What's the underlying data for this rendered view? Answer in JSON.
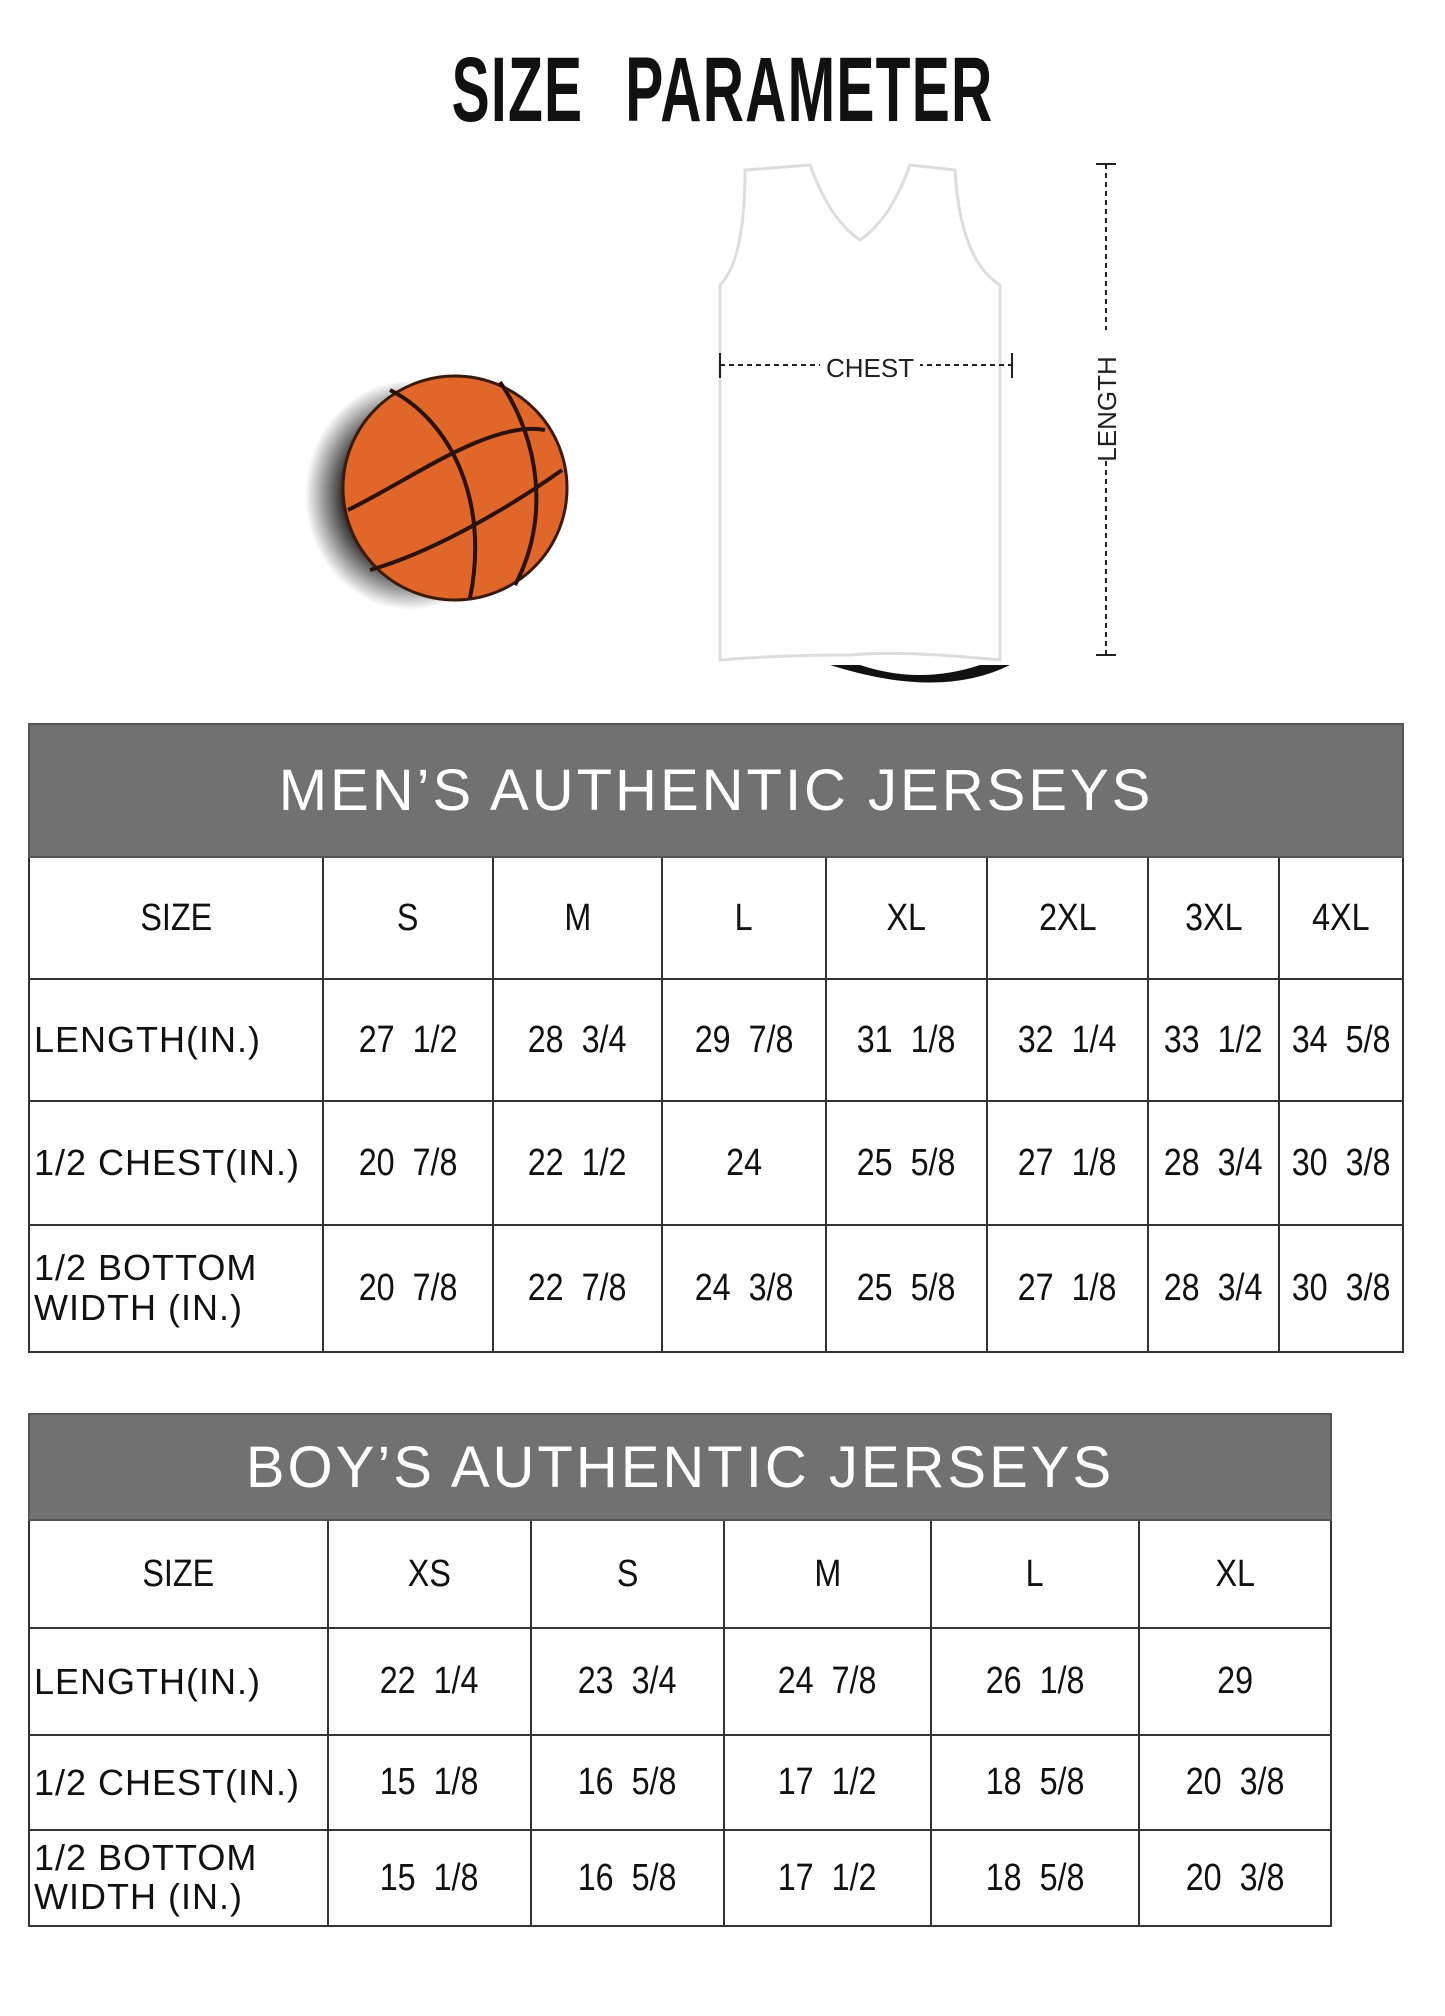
{
  "title": "SIZE PARAMETER",
  "diagram": {
    "chest_label": "CHEST",
    "length_label": "LENGTH"
  },
  "colors": {
    "header_bg": "#717171",
    "ball": "#e0662a"
  },
  "men": {
    "title": "MEN’S AUTHENTIC JERSEYS",
    "columns": [
      "SIZE",
      "S",
      "M",
      "L",
      "XL",
      "2XL",
      "3XL",
      "4XL"
    ],
    "rows": [
      {
        "label": "LENGTH(IN.)",
        "values": [
          "27  1/2",
          "28  3/4",
          "29  7/8",
          "31  1/8",
          "32  1/4",
          "33  1/2",
          "34  5/8"
        ]
      },
      {
        "label": "1/2 CHEST(IN.)",
        "values": [
          "20  7/8",
          "22  1/2",
          "24",
          "25  5/8",
          "27  1/8",
          "28  3/4",
          "30  3/8"
        ]
      },
      {
        "label": "1/2 BOTTOM WIDTH  (IN.)",
        "values": [
          "20  7/8",
          "22  7/8",
          "24  3/8",
          "25  5/8",
          "27  1/8",
          "28  3/4",
          "30  3/8"
        ]
      }
    ]
  },
  "boys": {
    "title": "BOY’S AUTHENTIC JERSEYS",
    "columns": [
      "SIZE",
      "XS",
      "S",
      "M",
      "L",
      "XL"
    ],
    "rows": [
      {
        "label": "LENGTH(IN.)",
        "values": [
          "22  1/4",
          "23  3/4",
          "24  7/8",
          "26  1/8",
          "29"
        ]
      },
      {
        "label": "1/2 CHEST(IN.)",
        "values": [
          "15  1/8",
          "16  5/8",
          "17  1/2",
          "18  5/8",
          "20  3/8"
        ]
      },
      {
        "label": "1/2 BOTTOM WIDTH  (IN.)",
        "values": [
          "15  1/8",
          "16  5/8",
          "17  1/2",
          "18  5/8",
          "20  3/8"
        ]
      }
    ]
  }
}
